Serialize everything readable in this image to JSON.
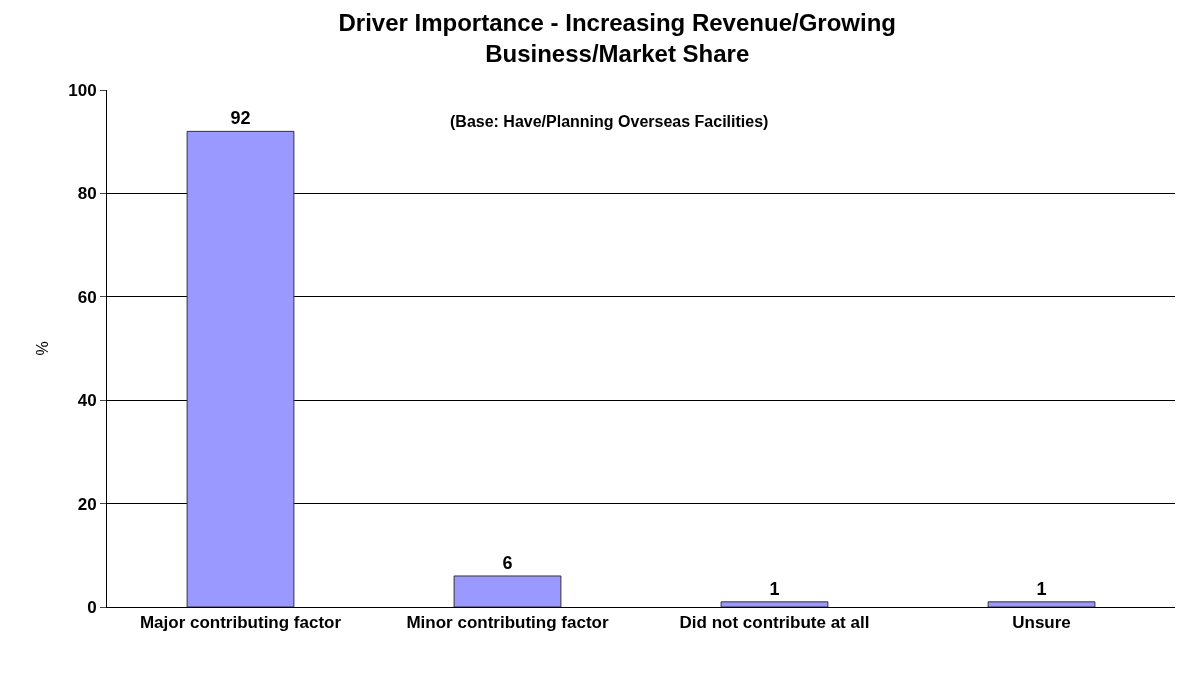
{
  "chart_data": {
    "type": "bar",
    "title": "Driver Importance - Increasing Revenue/Growing Business/Market Share",
    "ylabel": "%",
    "annotations": [
      "(Base: Have/Planning Overseas Facilities)"
    ],
    "categories": [
      "Major contributing factor",
      "Minor contributing factor",
      "Did not contribute at all",
      "Unsure"
    ],
    "values": [
      92,
      6,
      1,
      1
    ],
    "color": "#9999ff",
    "ylim": [
      0,
      100
    ],
    "yticks": [
      0,
      20,
      40,
      60,
      80,
      100
    ],
    "grid": "y",
    "data_labels": true
  }
}
